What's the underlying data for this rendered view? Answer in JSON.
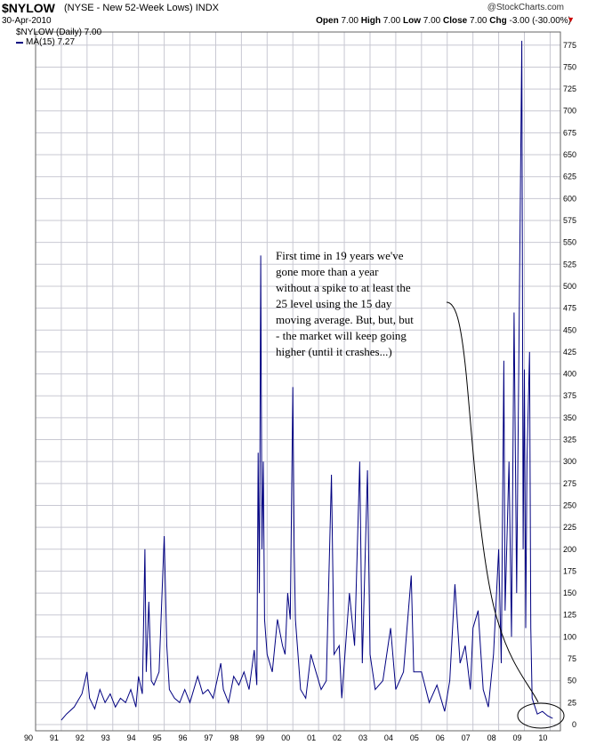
{
  "header": {
    "symbol": "$NYLOW",
    "name": "(NYSE - New 52-Week Lows) INDX",
    "date": "30-Apr-2010",
    "copyright": "@StockCharts.com",
    "ohlc": {
      "open_label": "Open",
      "open": "7.00",
      "high_label": "High",
      "high": "7.00",
      "low_label": "Low",
      "low": "7.00",
      "close_label": "Close",
      "close": "7.00",
      "chg_label": "Chg",
      "chg": "-3.00 (-30.00%)"
    }
  },
  "legend": {
    "line1": "$NYLOW (Daily) 7.00",
    "line2": "MA(15) 7.27"
  },
  "colors": {
    "series": "#000080",
    "grid": "#c8c8d2"
  },
  "annotation": {
    "lines": [
      "First time in 19 years we've",
      "gone more than a year",
      "without a spike to at least the",
      "25 level using the 15 day",
      "moving average. But, but, but",
      "- the market will keep going",
      "higher (until it crashes...)"
    ]
  },
  "chart_data": {
    "type": "line",
    "series": [
      {
        "name": "$NYLOW (Daily)",
        "color": "#000080"
      }
    ],
    "x_ticks": [
      "90",
      "91",
      "92",
      "93",
      "94",
      "95",
      "96",
      "97",
      "98",
      "99",
      "00",
      "01",
      "02",
      "03",
      "04",
      "05",
      "06",
      "07",
      "08",
      "09",
      "10"
    ],
    "ylim": [
      0,
      790
    ],
    "y_ticks": [
      0,
      25,
      50,
      75,
      100,
      125,
      150,
      175,
      200,
      225,
      250,
      275,
      300,
      325,
      350,
      375,
      400,
      425,
      450,
      475,
      500,
      525,
      550,
      575,
      600,
      625,
      650,
      675,
      700,
      725,
      750,
      775
    ],
    "grid": true,
    "keypoints": [
      [
        91.0,
        5
      ],
      [
        91.2,
        12
      ],
      [
        91.5,
        20
      ],
      [
        91.8,
        35
      ],
      [
        92.0,
        60
      ],
      [
        92.1,
        30
      ],
      [
        92.3,
        18
      ],
      [
        92.5,
        40
      ],
      [
        92.7,
        25
      ],
      [
        92.9,
        35
      ],
      [
        93.1,
        20
      ],
      [
        93.3,
        30
      ],
      [
        93.5,
        25
      ],
      [
        93.7,
        40
      ],
      [
        93.9,
        20
      ],
      [
        94.0,
        55
      ],
      [
        94.15,
        35
      ],
      [
        94.25,
        200
      ],
      [
        94.3,
        60
      ],
      [
        94.4,
        140
      ],
      [
        94.5,
        50
      ],
      [
        94.6,
        45
      ],
      [
        94.8,
        60
      ],
      [
        95.0,
        215
      ],
      [
        95.1,
        90
      ],
      [
        95.2,
        40
      ],
      [
        95.4,
        30
      ],
      [
        95.6,
        25
      ],
      [
        95.8,
        40
      ],
      [
        96.0,
        25
      ],
      [
        96.3,
        55
      ],
      [
        96.5,
        35
      ],
      [
        96.7,
        40
      ],
      [
        96.9,
        30
      ],
      [
        97.2,
        70
      ],
      [
        97.3,
        40
      ],
      [
        97.5,
        25
      ],
      [
        97.7,
        55
      ],
      [
        97.9,
        45
      ],
      [
        98.1,
        60
      ],
      [
        98.3,
        40
      ],
      [
        98.5,
        85
      ],
      [
        98.6,
        45
      ],
      [
        98.65,
        310
      ],
      [
        98.7,
        150
      ],
      [
        98.75,
        535
      ],
      [
        98.8,
        200
      ],
      [
        98.85,
        300
      ],
      [
        98.9,
        120
      ],
      [
        99.0,
        80
      ],
      [
        99.2,
        60
      ],
      [
        99.4,
        120
      ],
      [
        99.6,
        90
      ],
      [
        99.7,
        80
      ],
      [
        99.8,
        150
      ],
      [
        99.9,
        120
      ],
      [
        100.0,
        385
      ],
      [
        100.05,
        200
      ],
      [
        100.1,
        120
      ],
      [
        100.3,
        40
      ],
      [
        100.5,
        30
      ],
      [
        100.7,
        80
      ],
      [
        100.9,
        60
      ],
      [
        101.1,
        40
      ],
      [
        101.3,
        50
      ],
      [
        101.5,
        285
      ],
      [
        101.6,
        80
      ],
      [
        101.8,
        90
      ],
      [
        101.9,
        30
      ],
      [
        102.2,
        150
      ],
      [
        102.4,
        90
      ],
      [
        102.6,
        300
      ],
      [
        102.7,
        70
      ],
      [
        102.9,
        290
      ],
      [
        103.0,
        80
      ],
      [
        103.2,
        40
      ],
      [
        103.5,
        50
      ],
      [
        103.8,
        110
      ],
      [
        104.0,
        40
      ],
      [
        104.3,
        60
      ],
      [
        104.6,
        170
      ],
      [
        104.7,
        60
      ],
      [
        105.0,
        60
      ],
      [
        105.3,
        25
      ],
      [
        105.6,
        45
      ],
      [
        105.9,
        15
      ],
      [
        106.1,
        50
      ],
      [
        106.3,
        160
      ],
      [
        106.5,
        70
      ],
      [
        106.7,
        90
      ],
      [
        106.9,
        40
      ],
      [
        107.0,
        110
      ],
      [
        107.2,
        130
      ],
      [
        107.4,
        40
      ],
      [
        107.6,
        20
      ],
      [
        107.8,
        80
      ],
      [
        108.0,
        200
      ],
      [
        108.1,
        70
      ],
      [
        108.2,
        415
      ],
      [
        108.25,
        130
      ],
      [
        108.4,
        300
      ],
      [
        108.5,
        100
      ],
      [
        108.6,
        470
      ],
      [
        108.7,
        150
      ],
      [
        108.9,
        780
      ],
      [
        108.95,
        200
      ],
      [
        109.0,
        405
      ],
      [
        109.05,
        110
      ],
      [
        109.1,
        300
      ],
      [
        109.2,
        425
      ],
      [
        109.25,
        110
      ],
      [
        109.3,
        30
      ],
      [
        109.5,
        12
      ],
      [
        109.7,
        15
      ],
      [
        109.9,
        10
      ],
      [
        110.1,
        7
      ]
    ]
  }
}
